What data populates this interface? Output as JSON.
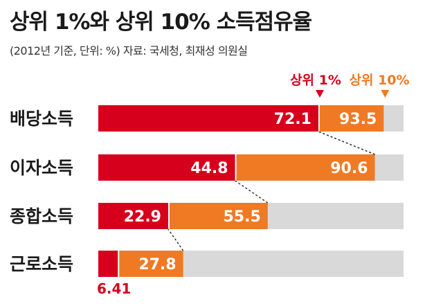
{
  "header": {
    "title": "상위 1%와 상위 10% 소득점유율",
    "subtitle": "(2012년 기준, 단위: %) 자료: 국세청, 최재성 의원실"
  },
  "colors": {
    "top1": "#d6001c",
    "top10": "#f07a23",
    "total": "#d9d9d9"
  },
  "chart_data": {
    "type": "bar",
    "orientation": "horizontal",
    "stacked_overlay": true,
    "categories": [
      "배당소득",
      "이자소득",
      "종합소득",
      "근로소득"
    ],
    "series": [
      {
        "name": "상위 1%",
        "values": [
          72.1,
          44.8,
          22.9,
          6.41
        ],
        "labels": [
          "72.1",
          "44.8",
          "22.9",
          "6.41"
        ]
      },
      {
        "name": "상위 10%",
        "values": [
          93.5,
          90.6,
          55.5,
          27.8
        ],
        "labels": [
          "93.5",
          "90.6",
          "55.5",
          "27.8"
        ]
      }
    ],
    "xlim": [
      0,
      100
    ],
    "legend": "top-right",
    "grid": false
  }
}
